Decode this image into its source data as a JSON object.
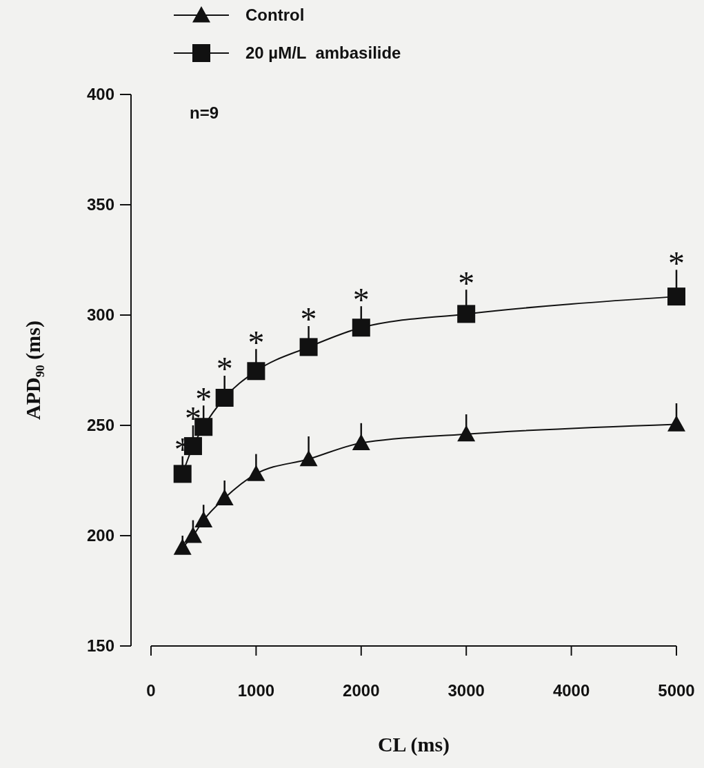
{
  "chart_data": {
    "type": "line",
    "xlabel": "CL (ms)",
    "ylabel": "APD₉₀ (ms)",
    "xlim": [
      0,
      5000
    ],
    "xticks": [
      0,
      1000,
      2000,
      3000,
      4000,
      5000
    ],
    "ylim": [
      150,
      400
    ],
    "yticks": [
      150,
      200,
      250,
      300,
      350,
      400
    ],
    "x": [
      300,
      400,
      500,
      700,
      1000,
      1500,
      2000,
      3000,
      5000
    ],
    "series": [
      {
        "name": "Control",
        "color": "#111111",
        "marker": "triangle",
        "values": [
          194.6,
          200,
          207,
          217,
          228,
          234.7,
          242,
          246,
          250.5
        ],
        "errors": [
          [
            194.6,
            200
          ],
          [
            200,
            207
          ],
          [
            207,
            214
          ],
          [
            217,
            225
          ],
          [
            228,
            237
          ],
          [
            234.7,
            245
          ],
          [
            242,
            251
          ],
          [
            246,
            255
          ],
          [
            250.5,
            260
          ]
        ]
      },
      {
        "name": "20 µM/L  ambasilide",
        "color": "#111111",
        "marker": "square",
        "values": [
          228,
          240.6,
          249.3,
          262.5,
          274.6,
          285.5,
          294.3,
          300.5,
          308.4
        ],
        "errors": [
          [
            228,
            236
          ],
          [
            240.6,
            250
          ],
          [
            249.3,
            259
          ],
          [
            262.5,
            272.5
          ],
          [
            274.6,
            284.6
          ],
          [
            285.5,
            295
          ],
          [
            294.3,
            304
          ],
          [
            300.5,
            311.5
          ],
          [
            308.4,
            320.5
          ]
        ]
      }
    ],
    "legend": "top left",
    "line_style": "solid",
    "grid": false,
    "annotations": [
      "n=9",
      {
        "text": "*",
        "x": 300,
        "y": 236
      },
      {
        "text": "*",
        "x": 400,
        "y": 250
      },
      {
        "text": "*",
        "x": 500,
        "y": 259
      },
      {
        "text": "*",
        "x": 700,
        "y": 272.5
      },
      {
        "text": "*",
        "x": 1000,
        "y": 284.6
      },
      {
        "text": "*",
        "x": 1500,
        "y": 295
      },
      {
        "text": "*",
        "x": 2000,
        "y": 304
      },
      {
        "text": "*",
        "x": 3000,
        "y": 311.5
      },
      {
        "text": "*",
        "x": 5000,
        "y": 320.5
      }
    ]
  }
}
